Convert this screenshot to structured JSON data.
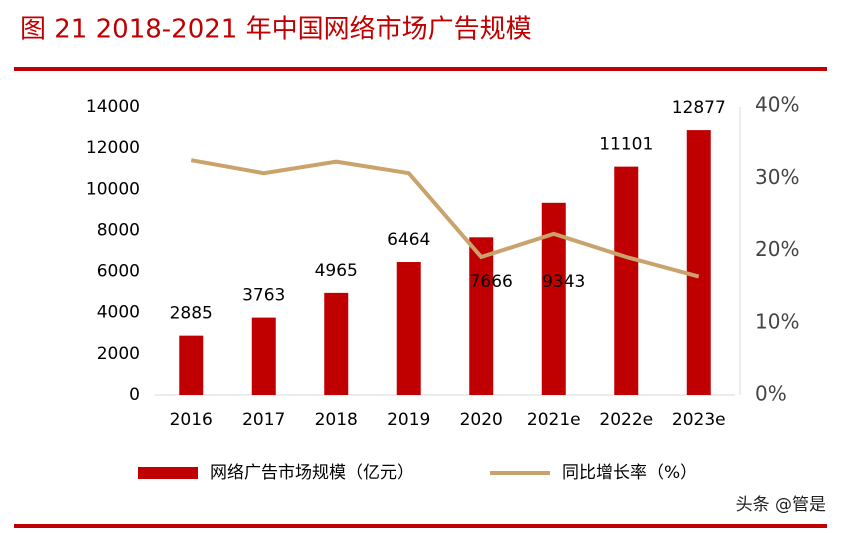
{
  "chart_data": {
    "type": "bar",
    "title": "图 21  2018-2021 年中国网络市场广告规模",
    "categories": [
      "2016",
      "2017",
      "2018",
      "2019",
      "2020",
      "2021e",
      "2022e",
      "2023e"
    ],
    "series": [
      {
        "name": "网络广告市场规模（亿元）",
        "color": "#c00000",
        "type": "bar",
        "values": [
          2885,
          3763,
          4965,
          6464,
          7666,
          9343,
          11101,
          12877
        ]
      },
      {
        "name": "同比增长率（%）",
        "color": "#c9a36b",
        "type": "line",
        "axis": "y2",
        "values": [
          32.5,
          30.7,
          32.3,
          30.7,
          19.1,
          22.3,
          19.1,
          16.4
        ]
      }
    ],
    "ylim": [
      0,
      14000
    ],
    "yticks": [
      0,
      2000,
      4000,
      6000,
      8000,
      10000,
      12000,
      14000
    ],
    "y2lim": [
      0,
      40
    ],
    "y2ticks": [
      {
        "value": 0,
        "label": "0%"
      },
      {
        "value": 10,
        "label": "10%"
      },
      {
        "value": 20,
        "label": "20%"
      },
      {
        "value": 30,
        "label": "30%"
      },
      {
        "value": 40,
        "label": "40%"
      }
    ],
    "grid": false,
    "watermark": "头条 @管是"
  }
}
